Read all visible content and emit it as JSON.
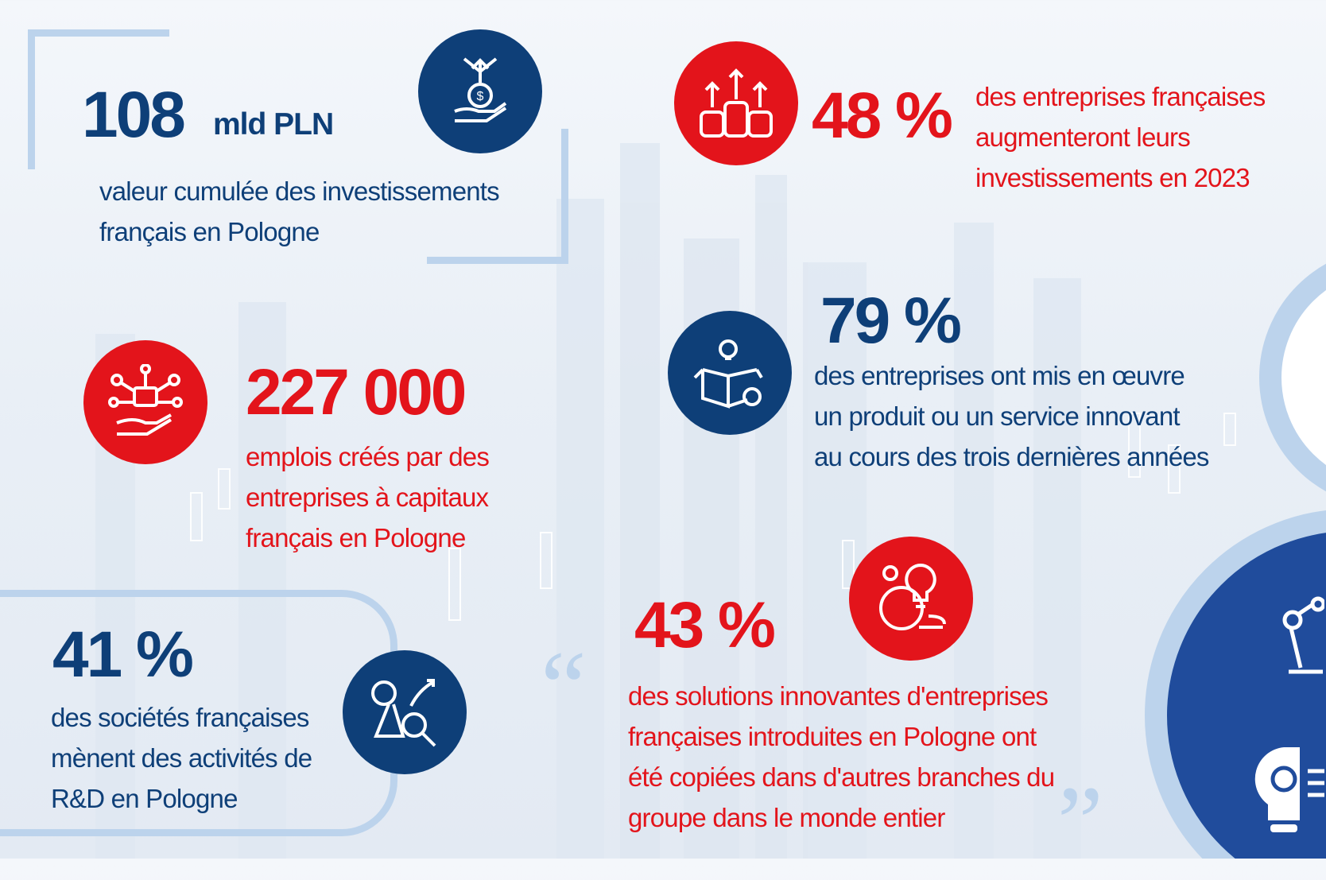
{
  "stats": [
    {
      "value": "108",
      "unit": "mld PLN",
      "lines": [
        "valeur cumulée des investissements",
        "français en Pologne"
      ],
      "icon": "investment-hand-icon",
      "color": "#0e3f78"
    },
    {
      "value": "48 %",
      "lines": [
        "des entreprises françaises",
        "augmenteront leurs",
        "investissements en 2023"
      ],
      "icon": "coins-growth-icon",
      "color": "#e3141b"
    },
    {
      "value": "79 %",
      "lines": [
        "des entreprises ont mis en œuvre",
        "un produit ou un service innovant",
        "au cours des trois dernières années"
      ],
      "icon": "innovation-box-icon",
      "color": "#0e3f78"
    },
    {
      "value": "227 000",
      "lines": [
        "emplois créés par des",
        "entreprises à capitaux",
        "français en Pologne"
      ],
      "icon": "jobs-network-icon",
      "color": "#e3141b"
    },
    {
      "value": "41 %",
      "lines": [
        "des sociétés françaises",
        "mènent des activités de",
        "R&D en Pologne"
      ],
      "icon": "research-icon",
      "color": "#0e3f78"
    },
    {
      "value": "43 %",
      "lines": [
        "des solutions innovantes d'entreprises",
        "françaises introduites en Pologne ont",
        "été copiées dans d'autres branches du",
        "groupe dans le monde entier"
      ],
      "icon": "global-idea-icon",
      "color": "#e3141b"
    }
  ]
}
